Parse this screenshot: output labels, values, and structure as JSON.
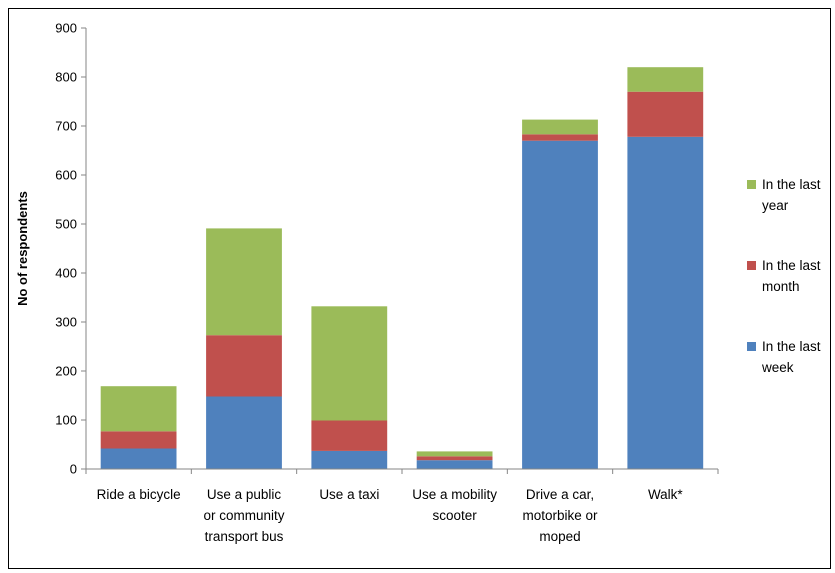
{
  "chart_data": {
    "type": "bar",
    "stacked": true,
    "ylabel": "No of respondents",
    "ylim": [
      0,
      900
    ],
    "yticks": [
      0,
      100,
      200,
      300,
      400,
      500,
      600,
      700,
      800,
      900
    ],
    "grid": false,
    "legend_position": "right",
    "categories": [
      [
        "Ride a bicycle"
      ],
      [
        "Use a public",
        "or community",
        "transport bus"
      ],
      [
        "Use a taxi"
      ],
      [
        "Use a mobility",
        "scooter"
      ],
      [
        "Drive a car,",
        "motorbike or",
        "moped"
      ],
      [
        "Walk*"
      ]
    ],
    "series": [
      {
        "name": [
          "In the last",
          "week"
        ],
        "color": "#4f81bd",
        "values": [
          42,
          148,
          37,
          18,
          670,
          678
        ]
      },
      {
        "name": [
          "In the last",
          "month"
        ],
        "color": "#c0504d",
        "values": [
          35,
          125,
          62,
          8,
          13,
          92
        ]
      },
      {
        "name": [
          "In the last",
          "year"
        ],
        "color": "#9bbb59",
        "values": [
          92,
          218,
          233,
          10,
          30,
          50
        ]
      }
    ]
  }
}
